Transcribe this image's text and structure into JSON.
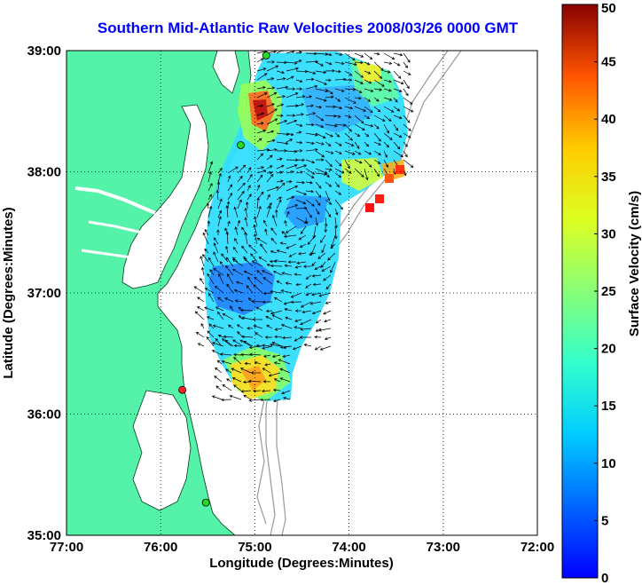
{
  "title": "Southern Mid-Atlantic Raw Velocities 2008/03/26 0000 GMT",
  "map": {
    "x_ticks": [
      "77:00",
      "76:00",
      "75:00",
      "74:00",
      "73:00",
      "72:00"
    ],
    "y_ticks": [
      "39:00",
      "38:00",
      "37:00",
      "36:00",
      "35:00"
    ],
    "xlabel": "Longitude (Degrees:Minutes)",
    "ylabel": "Latitude (Degrees:Minutes)",
    "lon_range": [
      -77,
      -72
    ],
    "lat_range": [
      35,
      39
    ],
    "grid": true,
    "land_color": "#55f2a9",
    "ocean_color": "#ffffff",
    "stations": [
      {
        "name": "station-green-1",
        "lon": -74.88,
        "lat": 38.96,
        "color": "#22dd22"
      },
      {
        "name": "station-green-2",
        "lon": -75.15,
        "lat": 38.22,
        "color": "#22dd22"
      },
      {
        "name": "station-red",
        "lon": -75.77,
        "lat": 36.2,
        "color": "#ff2222"
      },
      {
        "name": "station-green-3",
        "lon": -75.52,
        "lat": 35.27,
        "color": "#22dd22"
      }
    ]
  },
  "colorbar": {
    "label": "Surface Velocity (cm/s)",
    "ticks": [
      "0",
      "5",
      "10",
      "15",
      "20",
      "25",
      "30",
      "35",
      "40",
      "45",
      "50"
    ],
    "range": [
      0,
      50
    ]
  }
}
